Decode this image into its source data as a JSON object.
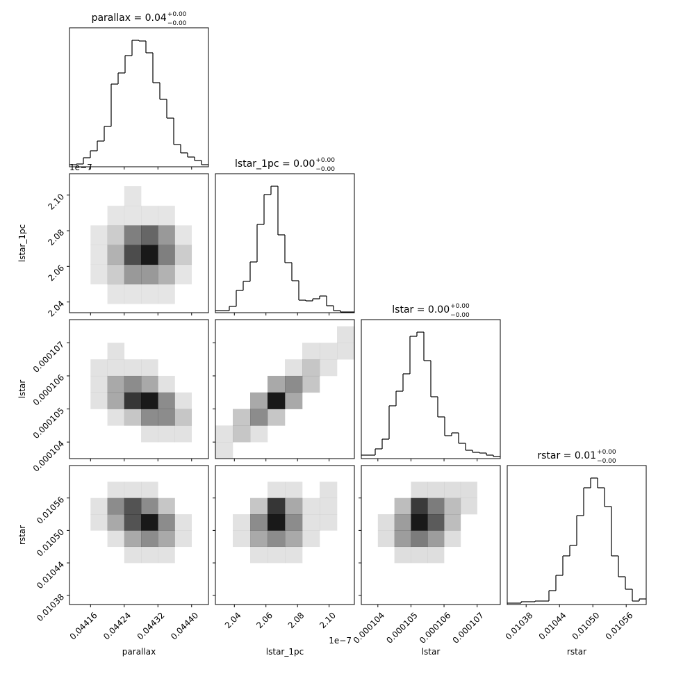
{
  "chart_data": [
    {
      "type": "histogram",
      "title": "parallax = 0.04",
      "title_upper": "+0.00",
      "title_lower": "−0.00",
      "color": "#000000",
      "bins": [
        0.04411,
        0.0441265,
        0.044143,
        0.0441595,
        0.044176,
        0.0441925,
        0.044209,
        0.0442255,
        0.044242,
        0.0442585,
        0.044275,
        0.0442915,
        0.044308,
        0.0443245,
        0.044341,
        0.0443575,
        0.044374,
        0.0443905,
        0.044407,
        0.0444235,
        0.04444
      ],
      "values": [
        3,
        4,
        13,
        23,
        37,
        58,
        119,
        135,
        160,
        182,
        181,
        164,
        121,
        97,
        70,
        32,
        20,
        14,
        9,
        3
      ],
      "xlim": [
        0.04411,
        0.04444
      ],
      "ylim": [
        0,
        200
      ]
    },
    {
      "type": "hist2d",
      "color": "#000000",
      "xlim": [
        0.04411,
        0.04444
      ],
      "ylim": [
        2.034,
        2.112
      ],
      "yticks": [
        2.04,
        2.06,
        2.08,
        {
          "value": 2.1,
          "label": "2.10"
        }
      ],
      "ylabel": "lstar_1pc",
      "y_offset_label": "1e−7",
      "xbins": [
        0.04412,
        0.04416,
        0.0442,
        0.04424,
        0.04428,
        0.04432,
        0.04436,
        0.0444,
        0.04444
      ],
      "ybins": [
        2.028,
        2.039,
        2.05,
        2.061,
        2.072,
        2.083,
        2.094,
        2.105,
        2.116
      ],
      "z": [
        [
          0,
          0,
          0,
          0,
          0,
          0,
          0,
          0
        ],
        [
          0,
          0,
          1,
          1,
          1,
          1,
          0,
          0
        ],
        [
          0,
          1,
          2,
          4,
          4,
          3,
          1,
          0
        ],
        [
          0,
          1,
          3,
          7,
          9,
          5,
          2,
          0
        ],
        [
          0,
          1,
          2,
          5,
          6,
          4,
          1,
          0
        ],
        [
          0,
          0,
          1,
          1,
          1,
          1,
          0,
          0
        ],
        [
          0,
          0,
          0,
          1,
          0,
          0,
          0,
          0
        ],
        [
          0,
          0,
          0,
          0,
          0,
          0,
          0,
          0
        ]
      ]
    },
    {
      "type": "histogram",
      "title": "lstar_1pc = 0.00",
      "title_upper": "+0.00",
      "title_lower": "−0.00",
      "color": "#000000",
      "bins": [
        2.028,
        2.0324,
        2.0368,
        2.0412,
        2.0456,
        2.05,
        2.0544,
        2.0588,
        2.0632,
        2.0676,
        2.072,
        2.0764,
        2.0808,
        2.0852,
        2.0896,
        2.094,
        2.0984,
        2.1028,
        2.1072,
        2.1116,
        2.116
      ],
      "values": [
        3,
        3,
        9,
        32,
        45,
        73,
        127,
        170,
        182,
        112,
        72,
        46,
        18,
        17,
        20,
        24,
        10,
        3,
        1,
        1
      ],
      "xlim": [
        2.028,
        2.116
      ],
      "ylim": [
        0,
        200
      ]
    },
    {
      "type": "hist2d",
      "color": "#000000",
      "xlim": [
        0.04411,
        0.04444
      ],
      "ylim": [
        0.0001035,
        0.0001077
      ],
      "yticks": [
        0.000104,
        0.000105,
        0.000106,
        0.000107
      ],
      "ylabel": "lstar",
      "xbins": [
        0.04412,
        0.04416,
        0.0442,
        0.04424,
        0.04428,
        0.04432,
        0.04436,
        0.0444,
        0.04444
      ],
      "ybins": [
        0.0001035,
        0.000104,
        0.0001045,
        0.000105,
        0.0001055,
        0.000106,
        0.0001065,
        0.000107,
        0.0001075
      ],
      "z": [
        [
          0,
          0,
          0,
          0,
          0,
          0,
          0,
          0
        ],
        [
          0,
          0,
          0,
          0,
          1,
          1,
          1,
          0
        ],
        [
          0,
          0,
          1,
          2,
          4,
          4,
          2,
          0
        ],
        [
          0,
          1,
          3,
          7,
          8,
          4,
          1,
          0
        ],
        [
          0,
          1,
          3,
          4,
          3,
          1,
          0,
          0
        ],
        [
          0,
          1,
          1,
          1,
          1,
          0,
          0,
          0
        ],
        [
          0,
          0,
          1,
          0,
          0,
          0,
          0,
          0
        ],
        [
          0,
          0,
          0,
          0,
          0,
          0,
          0,
          0
        ]
      ]
    },
    {
      "type": "hist2d",
      "color": "#000000",
      "xlim": [
        2.028,
        2.116
      ],
      "ylim": [
        0.0001035,
        0.0001077
      ],
      "xbins": [
        2.028,
        2.039,
        2.05,
        2.061,
        2.072,
        2.083,
        2.094,
        2.105,
        2.116
      ],
      "ybins": [
        0.0001035,
        0.000104,
        0.0001045,
        0.000105,
        0.0001055,
        0.000106,
        0.0001065,
        0.000107,
        0.0001075
      ],
      "z": [
        [
          1,
          0,
          0,
          0,
          0,
          0,
          0,
          0
        ],
        [
          1,
          2,
          1,
          0,
          0,
          0,
          0,
          0
        ],
        [
          0,
          2,
          4,
          2,
          0,
          0,
          0,
          0
        ],
        [
          0,
          0,
          3,
          8,
          3,
          0,
          0,
          0
        ],
        [
          0,
          0,
          0,
          3,
          4,
          2,
          0,
          0
        ],
        [
          0,
          0,
          0,
          0,
          1,
          2,
          1,
          0
        ],
        [
          0,
          0,
          0,
          0,
          0,
          1,
          1,
          1
        ],
        [
          0,
          0,
          0,
          0,
          0,
          0,
          0,
          1
        ]
      ]
    },
    {
      "type": "histogram",
      "title": "lstar = 0.00",
      "title_upper": "+0.00",
      "title_lower": "−0.00",
      "color": "#000000",
      "bins": [
        0.0001035,
        0.00010371,
        0.00010392,
        0.00010413,
        0.00010434,
        0.00010455,
        0.00010476,
        0.00010497,
        0.00010518,
        0.00010539,
        0.0001056,
        0.00010581,
        0.00010602,
        0.00010623,
        0.00010644,
        0.00010665,
        0.00010686,
        0.00010707,
        0.00010728,
        0.00010749,
        0.0001077
      ],
      "values": [
        5,
        5,
        14,
        28,
        76,
        97,
        122,
        176,
        182,
        141,
        89,
        60,
        33,
        37,
        22,
        12,
        9,
        8,
        5,
        3
      ],
      "xlim": [
        0.0001035,
        0.0001077
      ],
      "ylim": [
        0,
        200
      ]
    },
    {
      "type": "hist2d",
      "color": "#000000",
      "xlim": [
        0.04411,
        0.04444
      ],
      "ylim": [
        0.010363,
        0.01062
      ],
      "yticks": [
        0.01038,
        0.01044,
        {
          "value": 0.0105,
          "label": "0.01050"
        },
        0.01056
      ],
      "ylabel": "rstar",
      "xticks": [
        0.04416,
        0.04424,
        0.04432,
        {
          "value": 0.0444,
          "label": "0.04440"
        }
      ],
      "xlabel": "parallax",
      "xbins": [
        0.04412,
        0.04416,
        0.0442,
        0.04424,
        0.04428,
        0.04432,
        0.04436,
        0.0444,
        0.04444
      ],
      "ybins": [
        0.01035,
        0.01038,
        0.01041,
        0.01044,
        0.01047,
        0.0105,
        0.01053,
        0.01056,
        0.01059
      ],
      "z": [
        [
          0,
          0,
          0,
          0,
          0,
          0,
          0,
          0
        ],
        [
          0,
          0,
          0,
          0,
          0,
          0,
          0,
          0
        ],
        [
          0,
          0,
          0,
          0,
          0,
          0,
          0,
          0
        ],
        [
          0,
          0,
          0,
          1,
          1,
          1,
          0,
          0
        ],
        [
          0,
          0,
          1,
          3,
          4,
          3,
          1,
          0
        ],
        [
          0,
          1,
          3,
          6,
          8,
          4,
          1,
          0
        ],
        [
          0,
          1,
          4,
          6,
          4,
          2,
          0,
          0
        ],
        [
          0,
          0,
          1,
          1,
          1,
          0,
          0,
          0
        ]
      ]
    },
    {
      "type": "hist2d",
      "color": "#000000",
      "xlim": [
        2.028,
        2.116
      ],
      "ylim": [
        0.010363,
        0.01062
      ],
      "xticks": [
        2.04,
        2.06,
        2.08,
        {
          "value": 2.1,
          "label": "2.10"
        }
      ],
      "xlabel": "lstar_1pc",
      "x_offset_label": "1e−7",
      "xbins": [
        2.028,
        2.039,
        2.05,
        2.061,
        2.072,
        2.083,
        2.094,
        2.105,
        2.116
      ],
      "ybins": [
        0.01035,
        0.01038,
        0.01041,
        0.01044,
        0.01047,
        0.0105,
        0.01053,
        0.01056,
        0.01059
      ],
      "z": [
        [
          0,
          0,
          0,
          0,
          0,
          0,
          0,
          0
        ],
        [
          0,
          0,
          0,
          0,
          0,
          0,
          0,
          0
        ],
        [
          0,
          0,
          0,
          0,
          0,
          0,
          0,
          0
        ],
        [
          0,
          0,
          1,
          1,
          1,
          0,
          0,
          0
        ],
        [
          0,
          1,
          3,
          4,
          3,
          1,
          0,
          0
        ],
        [
          0,
          1,
          4,
          8,
          4,
          1,
          1,
          0
        ],
        [
          0,
          0,
          2,
          7,
          3,
          1,
          1,
          0
        ],
        [
          0,
          0,
          0,
          1,
          1,
          0,
          1,
          0
        ]
      ]
    },
    {
      "type": "hist2d",
      "color": "#000000",
      "xlim": [
        0.0001035,
        0.0001077
      ],
      "ylim": [
        0.010363,
        0.01062
      ],
      "xticks": [
        0.000104,
        0.000105,
        0.000106,
        0.000107
      ],
      "xlabel": "lstar",
      "xbins": [
        0.0001035,
        0.000104,
        0.0001045,
        0.000105,
        0.0001055,
        0.000106,
        0.0001065,
        0.000107,
        0.0001075
      ],
      "ybins": [
        0.01035,
        0.01038,
        0.01041,
        0.01044,
        0.01047,
        0.0105,
        0.01053,
        0.01056,
        0.01059
      ],
      "z": [
        [
          0,
          0,
          0,
          0,
          0,
          0,
          0,
          0
        ],
        [
          0,
          0,
          0,
          0,
          0,
          0,
          0,
          0
        ],
        [
          0,
          0,
          0,
          0,
          0,
          0,
          0,
          0
        ],
        [
          0,
          0,
          1,
          1,
          1,
          0,
          0,
          0
        ],
        [
          0,
          1,
          3,
          4,
          3,
          1,
          0,
          0
        ],
        [
          0,
          1,
          3,
          7,
          5,
          2,
          0,
          0
        ],
        [
          0,
          0,
          2,
          6,
          4,
          2,
          1,
          0
        ],
        [
          0,
          0,
          0,
          1,
          1,
          1,
          1,
          0
        ]
      ]
    },
    {
      "type": "histogram",
      "title": "rstar = 0.01",
      "title_upper": "+0.00",
      "title_lower": "−0.00",
      "color": "#000000",
      "bins": [
        0.010346,
        0.0103585,
        0.010371,
        0.0103835,
        0.010396,
        0.0104085,
        0.010421,
        0.0104335,
        0.010446,
        0.0104585,
        0.010471,
        0.0104835,
        0.010496,
        0.0105085,
        0.010521,
        0.0105335,
        0.010546,
        0.0105585,
        0.010571,
        0.0105835,
        0.010596
      ],
      "values": [
        2,
        2,
        4,
        4,
        5,
        5,
        20,
        42,
        70,
        85,
        128,
        168,
        182,
        168,
        141,
        70,
        40,
        22,
        5,
        8
      ],
      "xlim": [
        0.010346,
        0.010596
      ],
      "ylim": [
        0,
        200
      ],
      "xticks": [
        0.01038,
        0.01044,
        {
          "value": 0.0105,
          "label": "0.01050"
        },
        0.01056
      ],
      "xlabel": "rstar"
    }
  ]
}
